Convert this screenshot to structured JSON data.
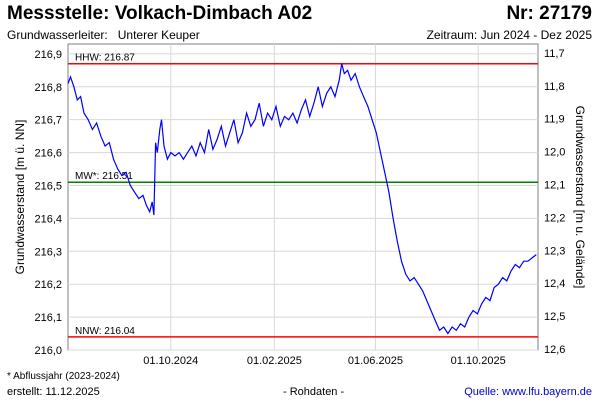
{
  "header": {
    "title": "Messstelle: Volkach-Dimbach A02",
    "number": "Nr: 27179",
    "aquifer_label": "Grundwasserleiter:",
    "aquifer_value": "Unterer Keuper",
    "period": "Zeitraum: Jun 2024 - Dez 2025"
  },
  "footer": {
    "note": "* Abflussjahr (2023-2024)",
    "created": "erstellt:  11.12.2025",
    "rawdata": "- Rohdaten -",
    "source": "Quelle: www.lfu.bayern.de"
  },
  "chart_data": {
    "type": "line",
    "ylabel": "Grundwasserstand [m ü. NN]",
    "y2label": "Grundwasserstand [m u. Gelände]",
    "ylim": [
      216.0,
      216.93
    ],
    "yticks": [
      "216,0",
      "216,1",
      "216,2",
      "216,3",
      "216,4",
      "216,5",
      "216,6",
      "216,7",
      "216,8",
      "216,9"
    ],
    "y2ticks": [
      "11,7",
      "11,8",
      "11,9",
      "12,0",
      "12,1",
      "12,2",
      "12,3",
      "12,4",
      "12,5",
      "12,6"
    ],
    "xlim": [
      "2024-06-01",
      "2025-12-11"
    ],
    "xticks": [
      {
        "date": "2024-10-01",
        "label": "01.10.2024"
      },
      {
        "date": "2025-02-01",
        "label": "01.02.2025"
      },
      {
        "date": "2025-06-01",
        "label": "01.06.2025"
      },
      {
        "date": "2025-10-01",
        "label": "01.10.2025"
      }
    ],
    "grid": true,
    "reference_lines": [
      {
        "label": "HHW: 216.87",
        "value": 216.87,
        "color": "#ff0000"
      },
      {
        "label": "MW*: 216.51",
        "value": 216.51,
        "color": "#008000"
      },
      {
        "label": "NNW: 216.04",
        "value": 216.04,
        "color": "#ff0000"
      }
    ],
    "series": [
      {
        "color": "#0000ff",
        "points": [
          [
            "2024-06-01",
            216.81
          ],
          [
            "2024-06-04",
            216.83
          ],
          [
            "2024-06-08",
            216.8
          ],
          [
            "2024-06-12",
            216.76
          ],
          [
            "2024-06-16",
            216.77
          ],
          [
            "2024-06-20",
            216.72
          ],
          [
            "2024-06-25",
            216.7
          ],
          [
            "2024-06-30",
            216.67
          ],
          [
            "2024-07-05",
            216.69
          ],
          [
            "2024-07-10",
            216.65
          ],
          [
            "2024-07-15",
            216.62
          ],
          [
            "2024-07-20",
            216.63
          ],
          [
            "2024-07-25",
            216.58
          ],
          [
            "2024-07-30",
            216.55
          ],
          [
            "2024-08-04",
            216.53
          ],
          [
            "2024-08-09",
            216.54
          ],
          [
            "2024-08-14",
            216.5
          ],
          [
            "2024-08-19",
            216.48
          ],
          [
            "2024-08-24",
            216.46
          ],
          [
            "2024-08-29",
            216.47
          ],
          [
            "2024-09-02",
            216.44
          ],
          [
            "2024-09-06",
            216.42
          ],
          [
            "2024-09-09",
            216.45
          ],
          [
            "2024-09-11",
            216.41
          ],
          [
            "2024-09-13",
            216.63
          ],
          [
            "2024-09-15",
            216.6
          ],
          [
            "2024-09-18",
            216.67
          ],
          [
            "2024-09-20",
            216.7
          ],
          [
            "2024-09-23",
            216.62
          ],
          [
            "2024-09-27",
            216.58
          ],
          [
            "2024-10-01",
            216.6
          ],
          [
            "2024-10-06",
            216.59
          ],
          [
            "2024-10-11",
            216.6
          ],
          [
            "2024-10-16",
            216.58
          ],
          [
            "2024-10-21",
            216.6
          ],
          [
            "2024-10-26",
            216.62
          ],
          [
            "2024-10-31",
            216.59
          ],
          [
            "2024-11-05",
            216.63
          ],
          [
            "2024-11-10",
            216.6
          ],
          [
            "2024-11-15",
            216.67
          ],
          [
            "2024-11-20",
            216.61
          ],
          [
            "2024-11-25",
            216.64
          ],
          [
            "2024-11-30",
            216.68
          ],
          [
            "2024-12-05",
            216.62
          ],
          [
            "2024-12-10",
            216.66
          ],
          [
            "2024-12-15",
            216.7
          ],
          [
            "2024-12-20",
            216.63
          ],
          [
            "2024-12-25",
            216.66
          ],
          [
            "2024-12-30",
            216.72
          ],
          [
            "2025-01-04",
            216.68
          ],
          [
            "2025-01-09",
            216.7
          ],
          [
            "2025-01-14",
            216.75
          ],
          [
            "2025-01-19",
            216.68
          ],
          [
            "2025-01-24",
            216.72
          ],
          [
            "2025-01-29",
            216.7
          ],
          [
            "2025-02-03",
            216.74
          ],
          [
            "2025-02-08",
            216.68
          ],
          [
            "2025-02-13",
            216.71
          ],
          [
            "2025-02-18",
            216.7
          ],
          [
            "2025-02-23",
            216.72
          ],
          [
            "2025-02-28",
            216.69
          ],
          [
            "2025-03-05",
            216.73
          ],
          [
            "2025-03-10",
            216.76
          ],
          [
            "2025-03-15",
            216.71
          ],
          [
            "2025-03-20",
            216.75
          ],
          [
            "2025-03-25",
            216.8
          ],
          [
            "2025-03-30",
            216.74
          ],
          [
            "2025-04-04",
            216.78
          ],
          [
            "2025-04-09",
            216.8
          ],
          [
            "2025-04-14",
            216.77
          ],
          [
            "2025-04-19",
            216.82
          ],
          [
            "2025-04-22",
            216.87
          ],
          [
            "2025-04-25",
            216.84
          ],
          [
            "2025-04-29",
            216.85
          ],
          [
            "2025-05-03",
            216.82
          ],
          [
            "2025-05-08",
            216.84
          ],
          [
            "2025-05-13",
            216.8
          ],
          [
            "2025-05-18",
            216.77
          ],
          [
            "2025-05-23",
            216.74
          ],
          [
            "2025-05-28",
            216.7
          ],
          [
            "2025-06-02",
            216.66
          ],
          [
            "2025-06-07",
            216.6
          ],
          [
            "2025-06-12",
            216.54
          ],
          [
            "2025-06-17",
            216.48
          ],
          [
            "2025-06-22",
            216.4
          ],
          [
            "2025-06-27",
            216.33
          ],
          [
            "2025-07-02",
            216.27
          ],
          [
            "2025-07-07",
            216.23
          ],
          [
            "2025-07-12",
            216.21
          ],
          [
            "2025-07-17",
            216.22
          ],
          [
            "2025-07-22",
            216.2
          ],
          [
            "2025-07-27",
            216.18
          ],
          [
            "2025-08-01",
            216.15
          ],
          [
            "2025-08-06",
            216.12
          ],
          [
            "2025-08-11",
            216.09
          ],
          [
            "2025-08-16",
            216.06
          ],
          [
            "2025-08-21",
            216.07
          ],
          [
            "2025-08-26",
            216.05
          ],
          [
            "2025-08-31",
            216.07
          ],
          [
            "2025-09-05",
            216.06
          ],
          [
            "2025-09-10",
            216.08
          ],
          [
            "2025-09-15",
            216.07
          ],
          [
            "2025-09-20",
            216.1
          ],
          [
            "2025-09-25",
            216.12
          ],
          [
            "2025-09-30",
            216.11
          ],
          [
            "2025-10-05",
            216.14
          ],
          [
            "2025-10-10",
            216.16
          ],
          [
            "2025-10-15",
            216.15
          ],
          [
            "2025-10-20",
            216.19
          ],
          [
            "2025-10-25",
            216.2
          ],
          [
            "2025-10-30",
            216.22
          ],
          [
            "2025-11-04",
            216.21
          ],
          [
            "2025-11-09",
            216.24
          ],
          [
            "2025-11-14",
            216.26
          ],
          [
            "2025-11-19",
            216.25
          ],
          [
            "2025-11-24",
            216.27
          ],
          [
            "2025-11-29",
            216.27
          ],
          [
            "2025-12-04",
            216.28
          ],
          [
            "2025-12-09",
            216.29
          ]
        ]
      }
    ]
  }
}
